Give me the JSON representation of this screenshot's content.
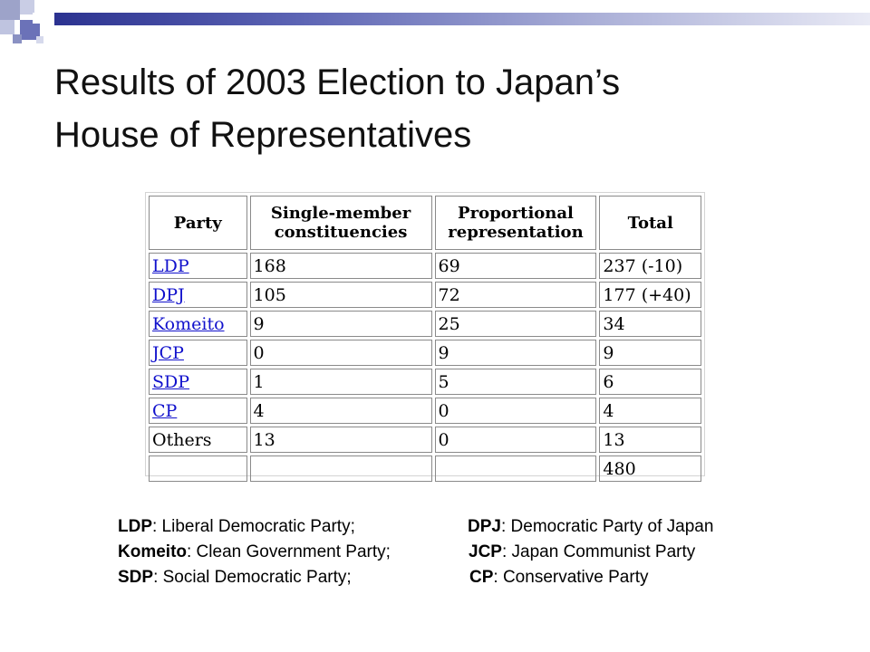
{
  "title": {
    "line1": "Results of 2003 Election to Japan’s",
    "line2": "House of Representatives"
  },
  "chart_data": {
    "type": "table",
    "columns": [
      "Party",
      "Single-member constituencies",
      "Proportional representation",
      "Total"
    ],
    "rows": [
      {
        "party": "LDP",
        "link": true,
        "single": "168",
        "proportional": "69",
        "total": "237 (-10)"
      },
      {
        "party": "DPJ",
        "link": true,
        "single": "105",
        "proportional": "72",
        "total": "177 (+40)"
      },
      {
        "party": "Komeito",
        "link": true,
        "single": "9",
        "proportional": "25",
        "total": "34"
      },
      {
        "party": "JCP",
        "link": true,
        "single": "0",
        "proportional": "9",
        "total": "9"
      },
      {
        "party": "SDP",
        "link": true,
        "single": "1",
        "proportional": "5",
        "total": "6"
      },
      {
        "party": "CP",
        "link": true,
        "single": "4",
        "proportional": "0",
        "total": "4"
      },
      {
        "party": "Others",
        "link": false,
        "single": "13",
        "proportional": "0",
        "total": "13"
      },
      {
        "party": "",
        "link": false,
        "single": "",
        "proportional": "",
        "total": "480"
      }
    ]
  },
  "legend": [
    {
      "left_abbr": "LDP",
      "left_text": ": Liberal Democratic Party;",
      "right_abbr": "DPJ",
      "right_text": ": Democratic Party of Japan"
    },
    {
      "left_abbr": "Komeito",
      "left_text": ": Clean Government Party;",
      "right_abbr": "JCP",
      "right_text": ": Japan Communist Party"
    },
    {
      "left_abbr": "SDP",
      "left_text": ": Social Democratic Party;",
      "right_abbr": "CP",
      "right_text": ": Conservative Party"
    }
  ],
  "colors": {
    "link": "#1111CC",
    "bar_start": "#2B3290",
    "bar_end": "#E9EAF5"
  }
}
